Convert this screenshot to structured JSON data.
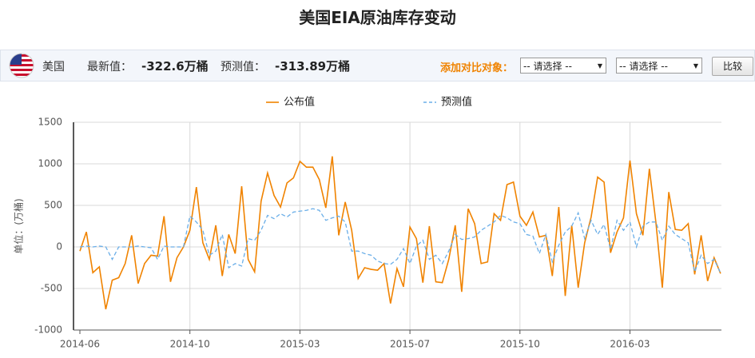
{
  "page_title": "美国EIA原油库存变动",
  "toolbar": {
    "country": "美国",
    "latest_label": "最新值：",
    "latest_value": "-322.6万桶",
    "forecast_label": "预测值：",
    "forecast_value": "-313.89万桶",
    "compare_label": "添加对比对象：",
    "select_1": "-- 请选择 --",
    "select_2": "-- 请选择 --",
    "button": "比较"
  },
  "chart_data": {
    "type": "line",
    "y_label": "单位：(万桶)",
    "categories": [
      "2014-06",
      null,
      null,
      null,
      null,
      null,
      null,
      null,
      null,
      null,
      null,
      null,
      null,
      null,
      null,
      null,
      null,
      "2014-10",
      null,
      null,
      null,
      null,
      null,
      null,
      null,
      null,
      null,
      null,
      null,
      null,
      null,
      null,
      null,
      null,
      "2015-03",
      null,
      null,
      null,
      null,
      null,
      null,
      null,
      null,
      null,
      null,
      null,
      null,
      null,
      null,
      null,
      null,
      "2015-07",
      null,
      null,
      null,
      null,
      null,
      null,
      null,
      null,
      null,
      null,
      null,
      null,
      null,
      null,
      null,
      null,
      "2015-10",
      null,
      null,
      null,
      null,
      null,
      null,
      null,
      null,
      null,
      null,
      null,
      null,
      null,
      null,
      null,
      null,
      "2016-03",
      null,
      null,
      null,
      null,
      null,
      null,
      null,
      null,
      null,
      null,
      null,
      null,
      null,
      null
    ],
    "series": [
      {
        "name": "公布值",
        "color": "#f08300",
        "dashed": false,
        "values": [
          -50,
          180,
          -310,
          -240,
          -750,
          -400,
          -370,
          -200,
          140,
          -440,
          -200,
          -100,
          -110,
          370,
          -420,
          -130,
          0,
          200,
          720,
          50,
          -150,
          260,
          -350,
          150,
          -80,
          730,
          -150,
          -300,
          550,
          890,
          620,
          480,
          770,
          830,
          1030,
          960,
          960,
          810,
          470,
          1090,
          140,
          540,
          200,
          -380,
          -250,
          -270,
          -280,
          -200,
          -680,
          -260,
          -480,
          240,
          100,
          -430,
          250,
          -420,
          -430,
          -150,
          260,
          -540,
          460,
          280,
          -200,
          -180,
          400,
          320,
          750,
          780,
          370,
          260,
          420,
          120,
          140,
          -350,
          480,
          -590,
          260,
          -490,
          50,
          360,
          840,
          780,
          -70,
          180,
          350,
          1040,
          400,
          140,
          940,
          300,
          -490,
          660,
          210,
          200,
          280,
          -330,
          140,
          -410,
          -130,
          -320
        ]
      },
      {
        "name": "预测值",
        "color": "#6aaee8",
        "dashed": true,
        "values": [
          0,
          10,
          0,
          10,
          0,
          -150,
          0,
          0,
          0,
          10,
          0,
          -10,
          -150,
          10,
          0,
          0,
          0,
          370,
          300,
          200,
          -100,
          -50,
          150,
          -250,
          -200,
          -230,
          100,
          80,
          200,
          380,
          340,
          400,
          360,
          420,
          430,
          440,
          460,
          440,
          320,
          350,
          370,
          300,
          -50,
          -50,
          -80,
          -100,
          -170,
          -200,
          -210,
          -150,
          -20,
          -200,
          10,
          80,
          -150,
          -100,
          -200,
          -50,
          150,
          90,
          100,
          120,
          200,
          250,
          300,
          380,
          350,
          300,
          280,
          150,
          130,
          -80,
          150,
          -180,
          20,
          180,
          250,
          410,
          100,
          320,
          150,
          270,
          -30,
          320,
          200,
          300,
          0,
          250,
          300,
          300,
          80,
          250,
          150,
          100,
          50,
          -300,
          -100,
          -200,
          -150,
          -314
        ]
      }
    ],
    "ylim": [
      -1000,
      1500
    ],
    "yticks": [
      -1000,
      -500,
      0,
      500,
      1000,
      1500
    ],
    "grid": true
  }
}
